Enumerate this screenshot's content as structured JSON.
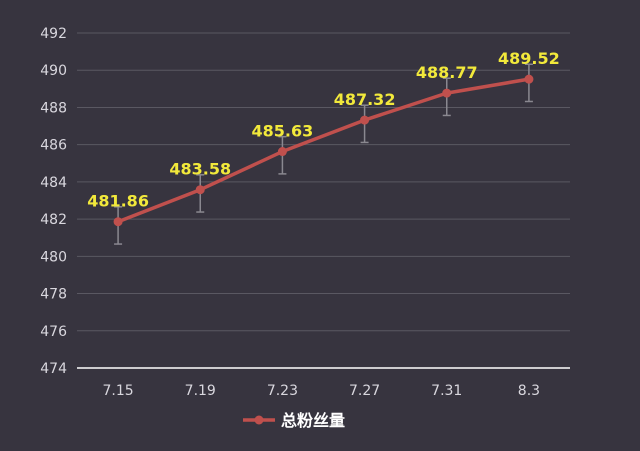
{
  "chart_data": {
    "type": "line",
    "categories": [
      "7.15",
      "7.19",
      "7.23",
      "7.27",
      "7.31",
      "8.3"
    ],
    "series": [
      {
        "name": "总粉丝量",
        "values": [
          481.86,
          483.58,
          485.63,
          487.32,
          488.77,
          489.52
        ],
        "data_labels": [
          "481.86",
          "483.58",
          "485.63",
          "487.32",
          "488.77",
          "489.52"
        ],
        "error_low": [
          480.66,
          482.38,
          484.43,
          486.12,
          487.57,
          488.32
        ],
        "error_high": [
          482.66,
          484.38,
          486.43,
          488.12,
          489.57,
          490.32
        ]
      }
    ],
    "yticks": [
      "474",
      "476",
      "478",
      "480",
      "482",
      "484",
      "486",
      "488",
      "490",
      "492"
    ],
    "ylim": [
      474,
      492
    ],
    "grid": true,
    "legend": "bottom-center",
    "colors": {
      "background": "#37343f",
      "line": "#c0504d",
      "grid": "#5a5862",
      "axis": "#ffffff",
      "error_bar": "#8a8890",
      "data_label": "#f2e93b",
      "tick_label": "#d9d7de",
      "legend_text": "#ffffff"
    }
  }
}
